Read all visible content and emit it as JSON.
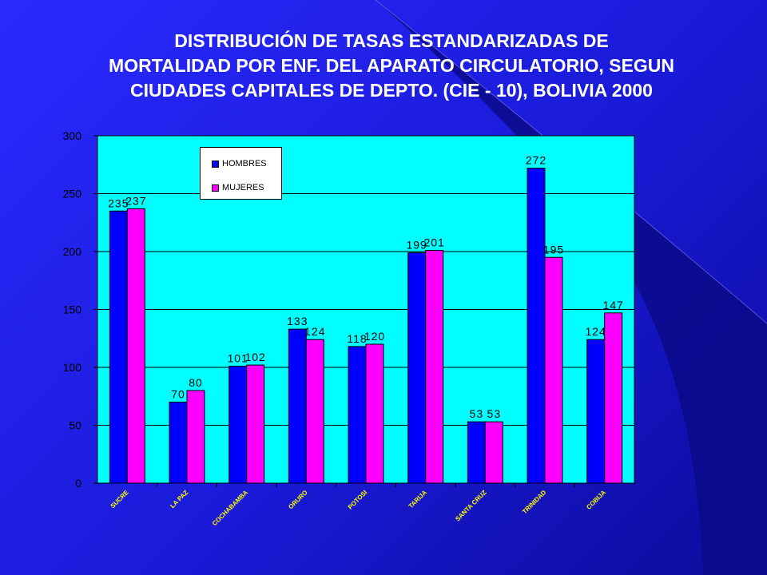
{
  "title": {
    "line1": "DISTRIBUCIÓN DE TASAS ESTANDARIZADAS DE",
    "line2": "MORTALIDAD POR ENF. DEL APARATO CIRCULATORIO, SEGUN",
    "line3": "CIUDADES CAPITALES DE DEPTO. (CIE - 10),  BOLIVIA 2000"
  },
  "colors": {
    "background": "#1a1ad8",
    "plot_area": "#00ffff",
    "hombres": "#0000ff",
    "mujeres": "#ff00ff"
  },
  "chart_data": {
    "type": "bar",
    "title": "DISTRIBUCIÓN DE TASAS ESTANDARIZADAS DE MORTALIDAD POR ENF. DEL APARATO CIRCULATORIO, SEGUN CIUDADES CAPITALES DE DEPTO. (CIE - 10),  BOLIVIA 2000",
    "categories": [
      "SUCRE",
      "LA PAZ",
      "COCHABAMBA",
      "ORURO",
      "POTOSI",
      "TARIJA",
      "SANTA CRUZ",
      "TRINIDAD",
      "COBIJA"
    ],
    "series": [
      {
        "name": "HOMBRES",
        "values": [
          235,
          70,
          101,
          133,
          118,
          199,
          53,
          272,
          124
        ]
      },
      {
        "name": "MUJERES",
        "values": [
          237,
          80,
          102,
          124,
          120,
          201,
          53,
          195,
          147
        ]
      }
    ],
    "yticks": [
      "0",
      "50",
      "100",
      "150",
      "200",
      "250",
      "300"
    ],
    "ylim": [
      0,
      300
    ],
    "grid": true,
    "legend_position": "top-left"
  }
}
